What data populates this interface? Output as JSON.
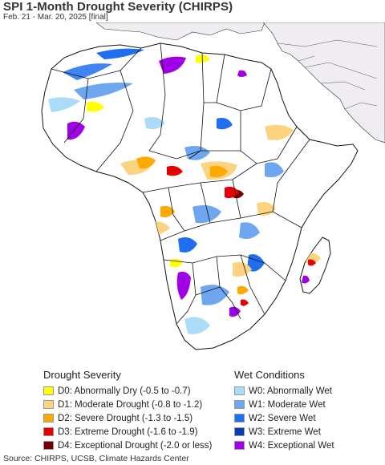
{
  "map": {
    "title": "SPI 1-Month Drought Severity (CHIRPS)",
    "subtitle": "Feb. 21 - Mar. 20, 2025 [final]",
    "colors": {
      "ocean": "#ffffff",
      "land_outside": "#efedf2",
      "land_base": "#ffffff",
      "border": "#111111"
    }
  },
  "legend": {
    "drought": {
      "heading": "Drought Severity",
      "items": [
        {
          "label": "D0: Abnormally Dry (-0.5 to -0.7)",
          "color": "#ffff00"
        },
        {
          "label": "D1: Moderate Drought (-0.8 to -1.2)",
          "color": "#fcd37f"
        },
        {
          "label": "D2: Severe Drought (-1.3 to -1.5)",
          "color": "#ffaa00"
        },
        {
          "label": "D3: Extreme Drought (-1.6 to -1.9)",
          "color": "#e60000"
        },
        {
          "label": "D4: Exceptional Drought (-2.0 or less)",
          "color": "#730000"
        }
      ]
    },
    "wet": {
      "heading": "Wet Conditions",
      "items": [
        {
          "label": "W0: Abnormally Wet",
          "color": "#aadcf8"
        },
        {
          "label": "W1: Moderate Wet",
          "color": "#6ea6f0"
        },
        {
          "label": "W2: Severe Wet",
          "color": "#1e6ef0"
        },
        {
          "label": "W3: Extreme Wet",
          "color": "#0a3cb4"
        },
        {
          "label": "W4: Exceptional Wet",
          "color": "#a000e6"
        }
      ]
    }
  },
  "source": "Source: CHIRPS, UCSB, Climate Hazards Center"
}
